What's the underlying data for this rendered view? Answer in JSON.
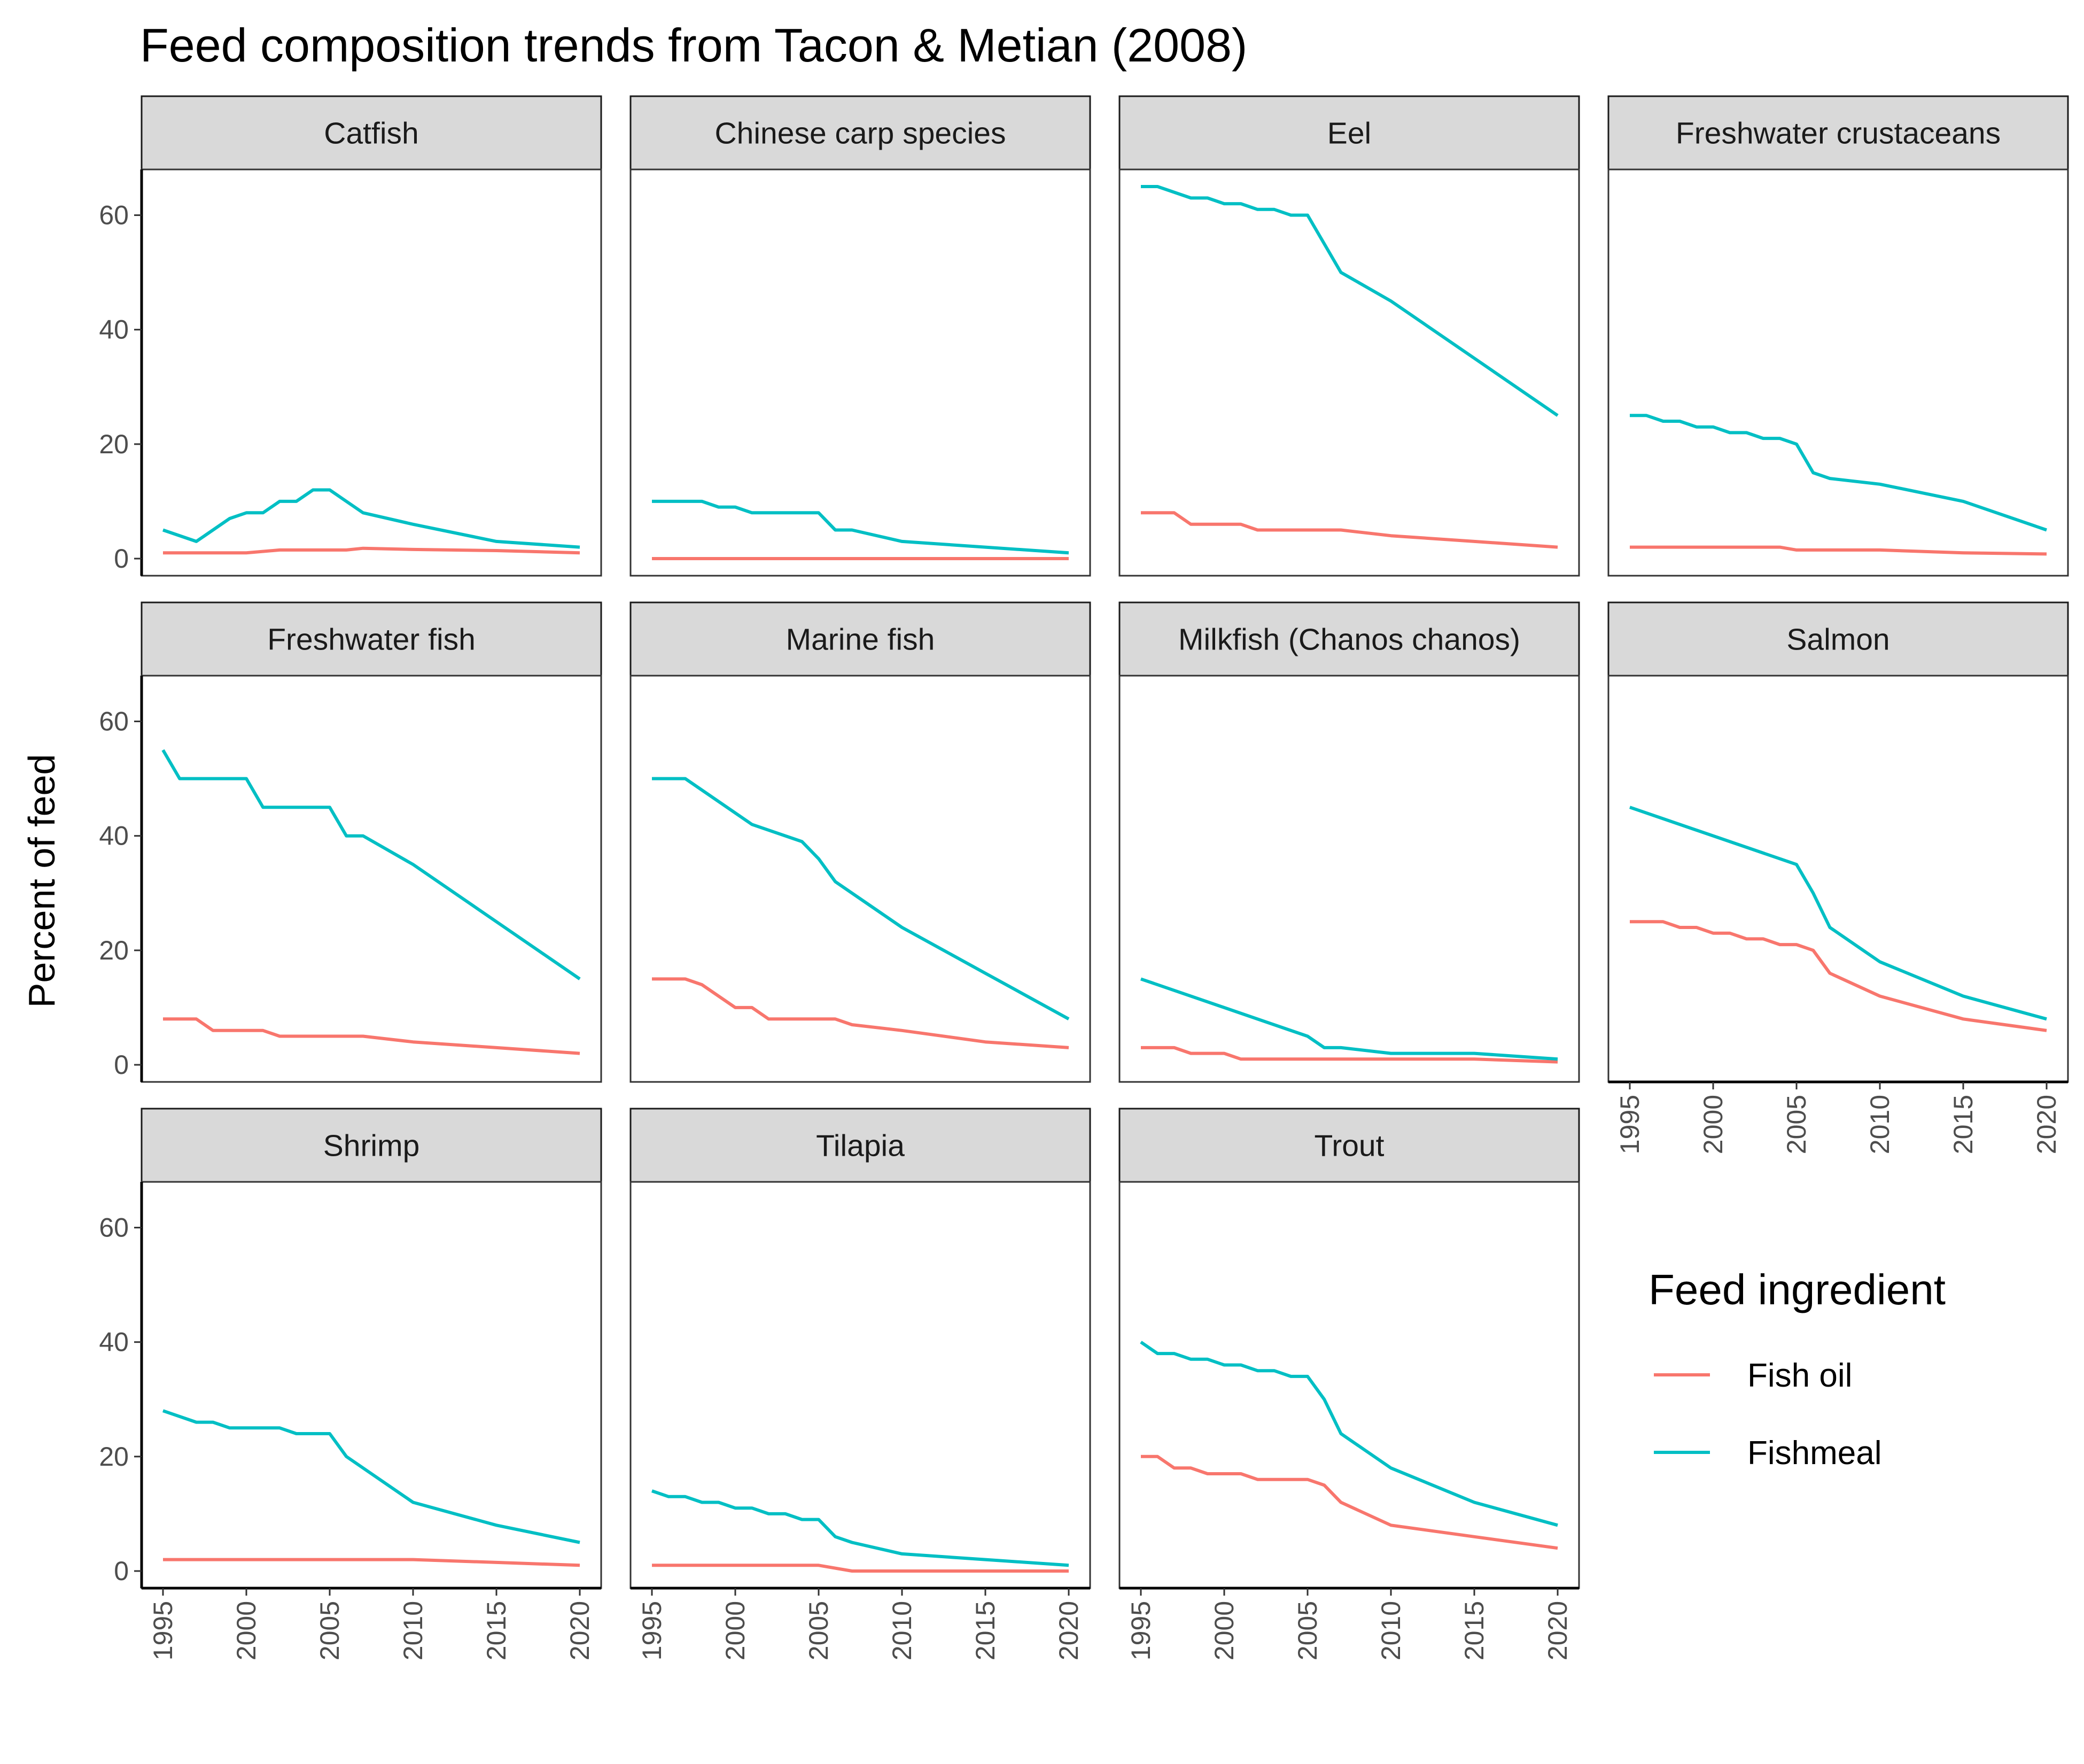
{
  "chart_data": {
    "type": "line",
    "title": "Feed composition trends from Tacon & Metian (2008)",
    "xlabel": "",
    "ylabel": "Percent of feed",
    "xlim": [
      1995,
      2020
    ],
    "ylim": [
      0,
      65
    ],
    "x_ticks": [
      "1995",
      "2000",
      "2005",
      "2010",
      "2015",
      "2020"
    ],
    "y_ticks": [
      "0",
      "20",
      "40",
      "60"
    ],
    "grid": false,
    "colors": {
      "Fish oil": "#F8766D",
      "Fishmeal": "#00BFC4"
    },
    "legend": {
      "title": "Feed ingredient",
      "position": "bottom-right",
      "entries": [
        "Fish oil",
        "Fishmeal"
      ]
    },
    "panels": [
      {
        "name": "Catfish",
        "series": [
          {
            "name": "Fish oil",
            "x": [
              1995,
              2000,
              2002,
              2004,
              2005,
              2006,
              2007,
              2010,
              2015,
              2020
            ],
            "y": [
              1,
              1,
              1.5,
              1.5,
              1.5,
              1.5,
              1.8,
              1.6,
              1.4,
              1
            ]
          },
          {
            "name": "Fishmeal",
            "x": [
              1995,
              1997,
              1999,
              2000,
              2001,
              2002,
              2003,
              2004,
              2005,
              2007,
              2010,
              2015,
              2020
            ],
            "y": [
              5,
              3,
              7,
              8,
              8,
              10,
              10,
              12,
              12,
              8,
              6,
              3,
              2
            ]
          }
        ]
      },
      {
        "name": "Chinese carp species",
        "series": [
          {
            "name": "Fish oil",
            "x": [
              1995,
              2020
            ],
            "y": [
              0,
              0
            ]
          },
          {
            "name": "Fishmeal",
            "x": [
              1995,
              1998,
              1999,
              2000,
              2001,
              2005,
              2006,
              2007,
              2010,
              2015,
              2020
            ],
            "y": [
              10,
              10,
              9,
              9,
              8,
              8,
              5,
              5,
              3,
              2,
              1
            ]
          }
        ]
      },
      {
        "name": "Eel",
        "series": [
          {
            "name": "Fish oil",
            "x": [
              1995,
              1997,
              1998,
              2001,
              2002,
              2007,
              2010,
              2015,
              2020
            ],
            "y": [
              8,
              8,
              6,
              6,
              5,
              5,
              4,
              3,
              2
            ]
          },
          {
            "name": "Fishmeal",
            "x": [
              1995,
              1996,
              1998,
              1999,
              2000,
              2001,
              2002,
              2003,
              2004,
              2005,
              2007,
              2010,
              2015,
              2020
            ],
            "y": [
              65,
              65,
              63,
              63,
              62,
              62,
              61,
              61,
              60,
              60,
              50,
              45,
              35,
              25
            ]
          }
        ]
      },
      {
        "name": "Freshwater crustaceans",
        "series": [
          {
            "name": "Fish oil",
            "x": [
              1995,
              2004,
              2005,
              2010,
              2015,
              2020
            ],
            "y": [
              2,
              2,
              1.5,
              1.5,
              1,
              0.8
            ]
          },
          {
            "name": "Fishmeal",
            "x": [
              1995,
              1996,
              1997,
              1998,
              1999,
              2000,
              2001,
              2002,
              2003,
              2004,
              2005,
              2006,
              2007,
              2010,
              2015,
              2020
            ],
            "y": [
              25,
              25,
              24,
              24,
              23,
              23,
              22,
              22,
              21,
              21,
              20,
              15,
              14,
              13,
              10,
              5
            ]
          }
        ]
      },
      {
        "name": "Freshwater fish",
        "series": [
          {
            "name": "Fish oil",
            "x": [
              1995,
              1997,
              1998,
              2001,
              2002,
              2007,
              2010,
              2015,
              2020
            ],
            "y": [
              8,
              8,
              6,
              6,
              5,
              5,
              4,
              3,
              2
            ]
          },
          {
            "name": "Fishmeal",
            "x": [
              1995,
              1996,
              2000,
              2001,
              2005,
              2006,
              2007,
              2010,
              2015,
              2020
            ],
            "y": [
              55,
              50,
              50,
              45,
              45,
              40,
              40,
              35,
              25,
              15
            ]
          }
        ]
      },
      {
        "name": "Marine fish",
        "series": [
          {
            "name": "Fish oil",
            "x": [
              1995,
              1997,
              1998,
              2000,
              2001,
              2002,
              2006,
              2007,
              2010,
              2015,
              2020
            ],
            "y": [
              15,
              15,
              14,
              10,
              10,
              8,
              8,
              7,
              6,
              4,
              3
            ]
          },
          {
            "name": "Fishmeal",
            "x": [
              1995,
              1997,
              2001,
              2004,
              2005,
              2006,
              2010,
              2015,
              2020
            ],
            "y": [
              50,
              50,
              42,
              39,
              36,
              32,
              24,
              16,
              8
            ]
          }
        ]
      },
      {
        "name": "Milkfish (Chanos chanos)",
        "series": [
          {
            "name": "Fish oil",
            "x": [
              1995,
              1997,
              1998,
              2000,
              2001,
              2015,
              2020
            ],
            "y": [
              3,
              3,
              2,
              2,
              1,
              1,
              0.5
            ]
          },
          {
            "name": "Fishmeal",
            "x": [
              1995,
              2005,
              2006,
              2007,
              2010,
              2015,
              2020
            ],
            "y": [
              15,
              5,
              3,
              3,
              2,
              2,
              1
            ]
          }
        ]
      },
      {
        "name": "Salmon",
        "series": [
          {
            "name": "Fish oil",
            "x": [
              1995,
              1997,
              1998,
              1999,
              2000,
              2001,
              2002,
              2003,
              2004,
              2005,
              2006,
              2007,
              2010,
              2015,
              2020
            ],
            "y": [
              25,
              25,
              24,
              24,
              23,
              23,
              22,
              22,
              21,
              21,
              20,
              16,
              12,
              8,
              6
            ]
          },
          {
            "name": "Fishmeal",
            "x": [
              1995,
              2005,
              2006,
              2007,
              2010,
              2015,
              2020
            ],
            "y": [
              45,
              35,
              30,
              24,
              18,
              12,
              8
            ]
          }
        ]
      },
      {
        "name": "Shrimp",
        "series": [
          {
            "name": "Fish oil",
            "x": [
              1995,
              2010,
              2015,
              2020
            ],
            "y": [
              2,
              2,
              1.5,
              1
            ]
          },
          {
            "name": "Fishmeal",
            "x": [
              1995,
              1997,
              1998,
              1999,
              2002,
              2003,
              2005,
              2006,
              2010,
              2015,
              2020
            ],
            "y": [
              28,
              26,
              26,
              25,
              25,
              24,
              24,
              20,
              12,
              8,
              5
            ]
          }
        ]
      },
      {
        "name": "Tilapia",
        "series": [
          {
            "name": "Fish oil",
            "x": [
              1995,
              2005,
              2007,
              2020
            ],
            "y": [
              1,
              1,
              0,
              0
            ]
          },
          {
            "name": "Fishmeal",
            "x": [
              1995,
              1996,
              1997,
              1998,
              1999,
              2000,
              2001,
              2002,
              2003,
              2004,
              2005,
              2006,
              2007,
              2010,
              2015,
              2020
            ],
            "y": [
              14,
              13,
              13,
              12,
              12,
              11,
              11,
              10,
              10,
              9,
              9,
              6,
              5,
              3,
              2,
              1
            ]
          }
        ]
      },
      {
        "name": "Trout",
        "series": [
          {
            "name": "Fish oil",
            "x": [
              1995,
              1996,
              1997,
              1998,
              1999,
              2001,
              2002,
              2005,
              2006,
              2007,
              2010,
              2015,
              2020
            ],
            "y": [
              20,
              20,
              18,
              18,
              17,
              17,
              16,
              16,
              15,
              12,
              8,
              6,
              4
            ]
          },
          {
            "name": "Fishmeal",
            "x": [
              1995,
              1996,
              1997,
              1998,
              1999,
              2000,
              2001,
              2002,
              2003,
              2004,
              2005,
              2006,
              2007,
              2010,
              2015,
              2020
            ],
            "y": [
              40,
              38,
              38,
              37,
              37,
              36,
              36,
              35,
              35,
              34,
              34,
              30,
              24,
              18,
              12,
              8
            ]
          }
        ]
      }
    ]
  }
}
